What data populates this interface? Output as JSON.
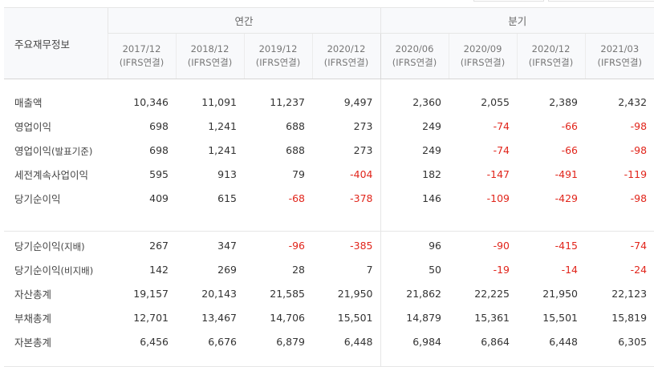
{
  "table": {
    "title": "주요재무정보",
    "groups": {
      "annual": "연간",
      "quarter": "분기"
    },
    "columns": [
      {
        "period": "2017/12",
        "basis": "(IFRS연결)"
      },
      {
        "period": "2018/12",
        "basis": "(IFRS연결)"
      },
      {
        "period": "2019/12",
        "basis": "(IFRS연결)"
      },
      {
        "period": "2020/12",
        "basis": "(IFRS연결)"
      },
      {
        "period": "2020/06",
        "basis": "(IFRS연결)"
      },
      {
        "period": "2020/09",
        "basis": "(IFRS연결)"
      },
      {
        "period": "2020/12",
        "basis": "(IFRS연결)"
      },
      {
        "period": "2021/03",
        "basis": "(IFRS연결)"
      }
    ],
    "rows": [
      {
        "label": "매출액",
        "sub": "",
        "values": [
          "10,346",
          "11,091",
          "11,237",
          "9,497",
          "2,360",
          "2,055",
          "2,389",
          "2,432"
        ]
      },
      {
        "label": "영업이익",
        "sub": "",
        "values": [
          "698",
          "1,241",
          "688",
          "273",
          "249",
          "-74",
          "-66",
          "-98"
        ]
      },
      {
        "label": "영업이익",
        "sub": "(발표기준)",
        "values": [
          "698",
          "1,241",
          "688",
          "273",
          "249",
          "-74",
          "-66",
          "-98"
        ]
      },
      {
        "label": "세전계속사업이익",
        "sub": "",
        "values": [
          "595",
          "913",
          "79",
          "-404",
          "182",
          "-147",
          "-491",
          "-119"
        ]
      },
      {
        "label": "당기순이익",
        "sub": "",
        "values": [
          "409",
          "615",
          "-68",
          "-378",
          "146",
          "-109",
          "-429",
          "-98"
        ]
      },
      {
        "label": "당기순이익",
        "sub": "(지배)",
        "values": [
          "267",
          "347",
          "-96",
          "-385",
          "96",
          "-90",
          "-415",
          "-74"
        ]
      },
      {
        "label": "당기순이익",
        "sub": "(비지배)",
        "values": [
          "142",
          "269",
          "28",
          "7",
          "50",
          "-19",
          "-14",
          "-24"
        ]
      },
      {
        "label": "자산총계",
        "sub": "",
        "values": [
          "19,157",
          "20,143",
          "21,585",
          "21,950",
          "21,862",
          "22,225",
          "21,950",
          "22,123"
        ]
      },
      {
        "label": "부채총계",
        "sub": "",
        "values": [
          "12,701",
          "13,467",
          "14,706",
          "15,501",
          "14,879",
          "15,361",
          "15,501",
          "15,819"
        ]
      },
      {
        "label": "자본총계",
        "sub": "",
        "values": [
          "6,456",
          "6,676",
          "6,879",
          "6,448",
          "6,984",
          "6,864",
          "6,448",
          "6,305"
        ]
      }
    ]
  }
}
